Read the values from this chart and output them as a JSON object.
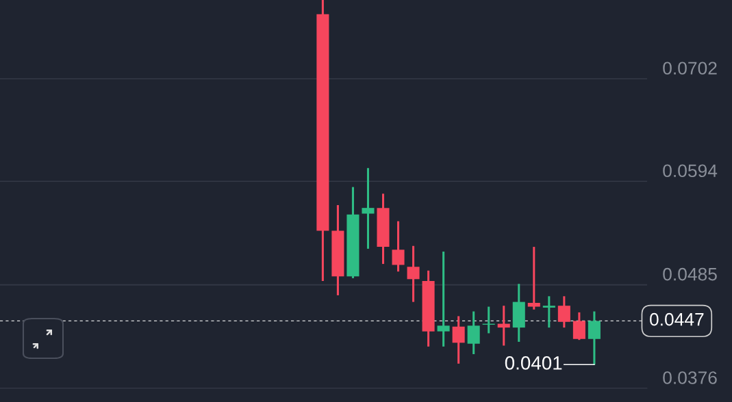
{
  "chart_data": {
    "type": "candlestick",
    "categories": [
      null,
      null,
      null,
      null,
      null,
      null,
      null,
      null,
      null,
      null,
      null,
      null,
      null,
      null,
      null,
      null,
      null,
      null,
      null
    ],
    "ohlc": [
      [
        0.077,
        0.0785,
        0.0489,
        0.0542
      ],
      [
        0.0542,
        0.0569,
        0.0474,
        0.0494
      ],
      [
        0.0494,
        0.0588,
        0.0492,
        0.0559
      ],
      [
        0.056,
        0.0608,
        0.0523,
        0.0566
      ],
      [
        0.0566,
        0.0581,
        0.0507,
        0.0525
      ],
      [
        0.0522,
        0.0552,
        0.0499,
        0.0506
      ],
      [
        0.0504,
        0.0526,
        0.0467,
        0.0491
      ],
      [
        0.0489,
        0.05,
        0.042,
        0.0436
      ],
      [
        0.0436,
        0.052,
        0.042,
        0.0442
      ],
      [
        0.0441,
        0.0452,
        0.0402,
        0.0424
      ],
      [
        0.0423,
        0.0457,
        0.0412,
        0.0442
      ],
      [
        0.0443,
        0.0462,
        0.0434,
        0.0444
      ],
      [
        0.0444,
        0.0463,
        0.0421,
        0.044
      ],
      [
        0.044,
        0.0486,
        0.0425,
        0.0467
      ],
      [
        0.0466,
        0.0525,
        0.0459,
        0.0462
      ],
      [
        0.0461,
        0.0473,
        0.044,
        0.0463
      ],
      [
        0.0463,
        0.0473,
        0.044,
        0.0446
      ],
      [
        0.0447,
        0.0456,
        0.0427,
        0.0428
      ],
      [
        0.0428,
        0.0457,
        0.0401,
        0.0447
      ]
    ],
    "colors": [
      "#f6465d",
      "#f6465d",
      "#2ebd85",
      "#2ebd85",
      "#f6465d",
      "#f6465d",
      "#f6465d",
      "#f6465d",
      "#2ebd85",
      "#f6465d",
      "#2ebd85",
      "#2ebd85",
      "#f6465d",
      "#2ebd85",
      "#f6465d",
      "#2ebd85",
      "#f6465d",
      "#f6465d",
      "#2ebd85"
    ],
    "ylim": [
      0.0376,
      0.0785
    ],
    "yticks": [
      0.0376,
      0.0485,
      0.0594,
      0.0702
    ],
    "tick_labels": "y",
    "grid": "y",
    "ref_lines": [
      {
        "axis": "y",
        "value": 0.0447,
        "label": "0.0447",
        "line_style": "dashed",
        "color": "#ffffff"
      }
    ],
    "annotations": [
      "0.0401"
    ]
  }
}
